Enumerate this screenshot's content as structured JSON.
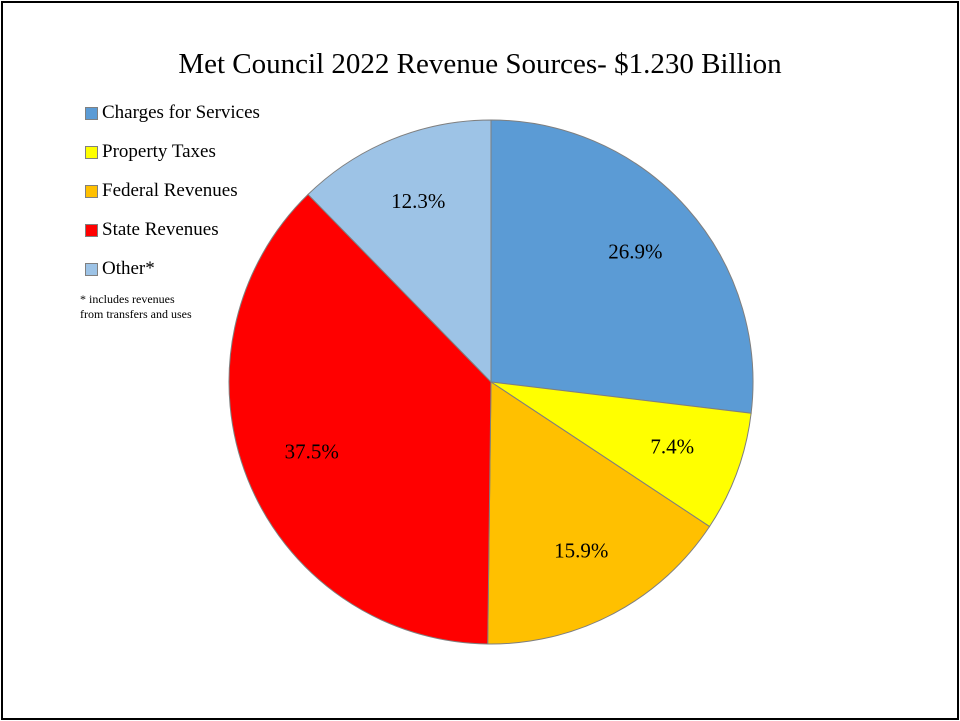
{
  "chart_data": {
    "type": "pie",
    "title": "Met Council 2022 Revenue Sources- $1.230 Billion",
    "categories": [
      "Charges for Services",
      "Property Taxes",
      "Federal Revenues",
      "State Revenues",
      "Other*"
    ],
    "values": [
      26.9,
      7.4,
      15.9,
      37.5,
      12.3
    ],
    "data_labels": [
      "26.9%",
      "7.4%",
      "15.9%",
      "37.5%",
      "12.3%"
    ],
    "colors": [
      "#5b9bd5",
      "#ffff00",
      "#ffc000",
      "#ff0000",
      "#9dc3e6"
    ],
    "legend_position": "left",
    "legend_note": "* includes revenues\nfrom transfers and uses"
  }
}
